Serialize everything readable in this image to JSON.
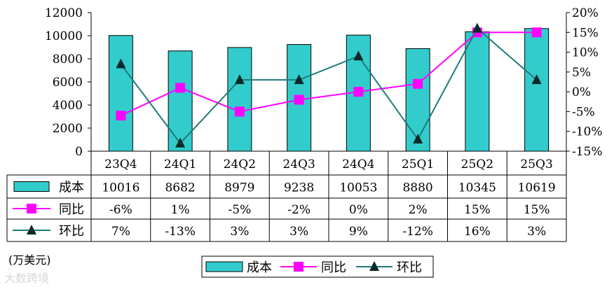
{
  "chart_data": {
    "type": "bar",
    "categories": [
      "23Q4",
      "24Q1",
      "24Q2",
      "24Q3",
      "24Q4",
      "25Q1",
      "25Q2",
      "25Q3"
    ],
    "series": [
      {
        "name": "成本",
        "kind": "bar",
        "axis": "left",
        "color": "#33CCCC",
        "values": [
          10016,
          8682,
          8979,
          9238,
          10053,
          8880,
          10345,
          10619
        ],
        "labels": [
          "10016",
          "8682",
          "8979",
          "9238",
          "10053",
          "8880",
          "10345",
          "10619"
        ]
      },
      {
        "name": "同比",
        "kind": "line",
        "axis": "right",
        "color": "#FF00FF",
        "marker": "square",
        "values": [
          -6,
          1,
          -5,
          -2,
          0,
          2,
          15,
          15
        ],
        "labels": [
          "-6%",
          "1%",
          "-5%",
          "-2%",
          "0%",
          "2%",
          "15%",
          "15%"
        ]
      },
      {
        "name": "环比",
        "kind": "line",
        "axis": "right",
        "color": "#1F7A7A",
        "marker": "triangle",
        "values": [
          7,
          -13,
          3,
          3,
          9,
          -12,
          16,
          3
        ],
        "labels": [
          "7%",
          "-13%",
          "3%",
          "3%",
          "9%",
          "-12%",
          "16%",
          "3%"
        ]
      }
    ],
    "y_left": {
      "ylim": [
        0,
        12000
      ],
      "ticks": [
        "0",
        "2000",
        "4000",
        "6000",
        "8000",
        "10000",
        "12000"
      ]
    },
    "y_right": {
      "ylim": [
        -15,
        20
      ],
      "ticks": [
        "-15%",
        "-10%",
        "-5%",
        "0%",
        "5%",
        "10%",
        "15%",
        "20%"
      ]
    },
    "legend_placement": "bottom-center",
    "unit_label": "(万美元)",
    "grid": false
  },
  "watermark": "大数跨境"
}
